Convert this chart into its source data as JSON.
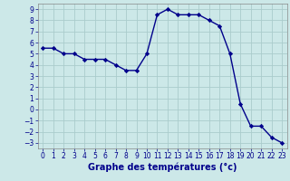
{
  "x": [
    0,
    1,
    2,
    3,
    4,
    5,
    6,
    7,
    8,
    9,
    10,
    11,
    12,
    13,
    14,
    15,
    16,
    17,
    18,
    19,
    20,
    21,
    22,
    23
  ],
  "y": [
    5.5,
    5.5,
    5.0,
    5.0,
    4.5,
    4.5,
    4.5,
    4.0,
    3.5,
    3.5,
    5.0,
    8.5,
    9.0,
    8.5,
    8.5,
    8.5,
    8.0,
    7.5,
    5.0,
    0.5,
    -1.5,
    -1.5,
    -2.5,
    -3.0
  ],
  "line_color": "#00008b",
  "marker": "D",
  "marker_size": 2.2,
  "bg_color": "#cce8e8",
  "grid_color": "#aacccc",
  "xlabel": "Graphe des températures (°c)",
  "xlim": [
    -0.5,
    23.5
  ],
  "ylim": [
    -3.5,
    9.5
  ],
  "yticks": [
    -3,
    -2,
    -1,
    0,
    1,
    2,
    3,
    4,
    5,
    6,
    7,
    8,
    9
  ],
  "xticks": [
    0,
    1,
    2,
    3,
    4,
    5,
    6,
    7,
    8,
    9,
    10,
    11,
    12,
    13,
    14,
    15,
    16,
    17,
    18,
    19,
    20,
    21,
    22,
    23
  ],
  "tick_color": "#00008b",
  "tick_fontsize": 5.5,
  "xlabel_fontsize": 7.0,
  "line_width": 1.0
}
